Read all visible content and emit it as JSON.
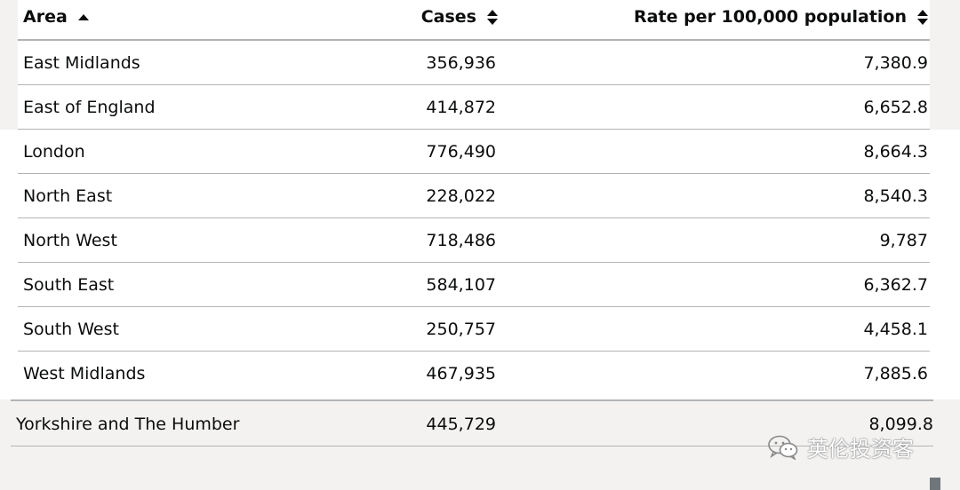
{
  "table": {
    "headers": {
      "area": "Area",
      "cases": "Cases",
      "rate": "Rate per 100,000 population"
    },
    "sort": {
      "area": "ascending",
      "cases": "none",
      "rate": "none"
    },
    "rows": [
      {
        "area": "East Midlands",
        "cases": "356,936",
        "rate": "7,380.9"
      },
      {
        "area": "East of England",
        "cases": "414,872",
        "rate": "6,652.8"
      },
      {
        "area": "London",
        "cases": "776,490",
        "rate": "8,664.3"
      },
      {
        "area": "North East",
        "cases": "228,022",
        "rate": "8,540.3"
      },
      {
        "area": "North West",
        "cases": "718,486",
        "rate": "9,787"
      },
      {
        "area": "South East",
        "cases": "584,107",
        "rate": "6,362.7"
      },
      {
        "area": "South West",
        "cases": "250,757",
        "rate": "4,458.1"
      },
      {
        "area": "West Midlands",
        "cases": "467,935",
        "rate": "7,885.6"
      },
      {
        "area": "Yorkshire and The Humber",
        "cases": "445,729",
        "rate": "8,099.8"
      }
    ]
  },
  "watermark": {
    "text": "英伦投资客",
    "icon": "wechat-icon"
  }
}
